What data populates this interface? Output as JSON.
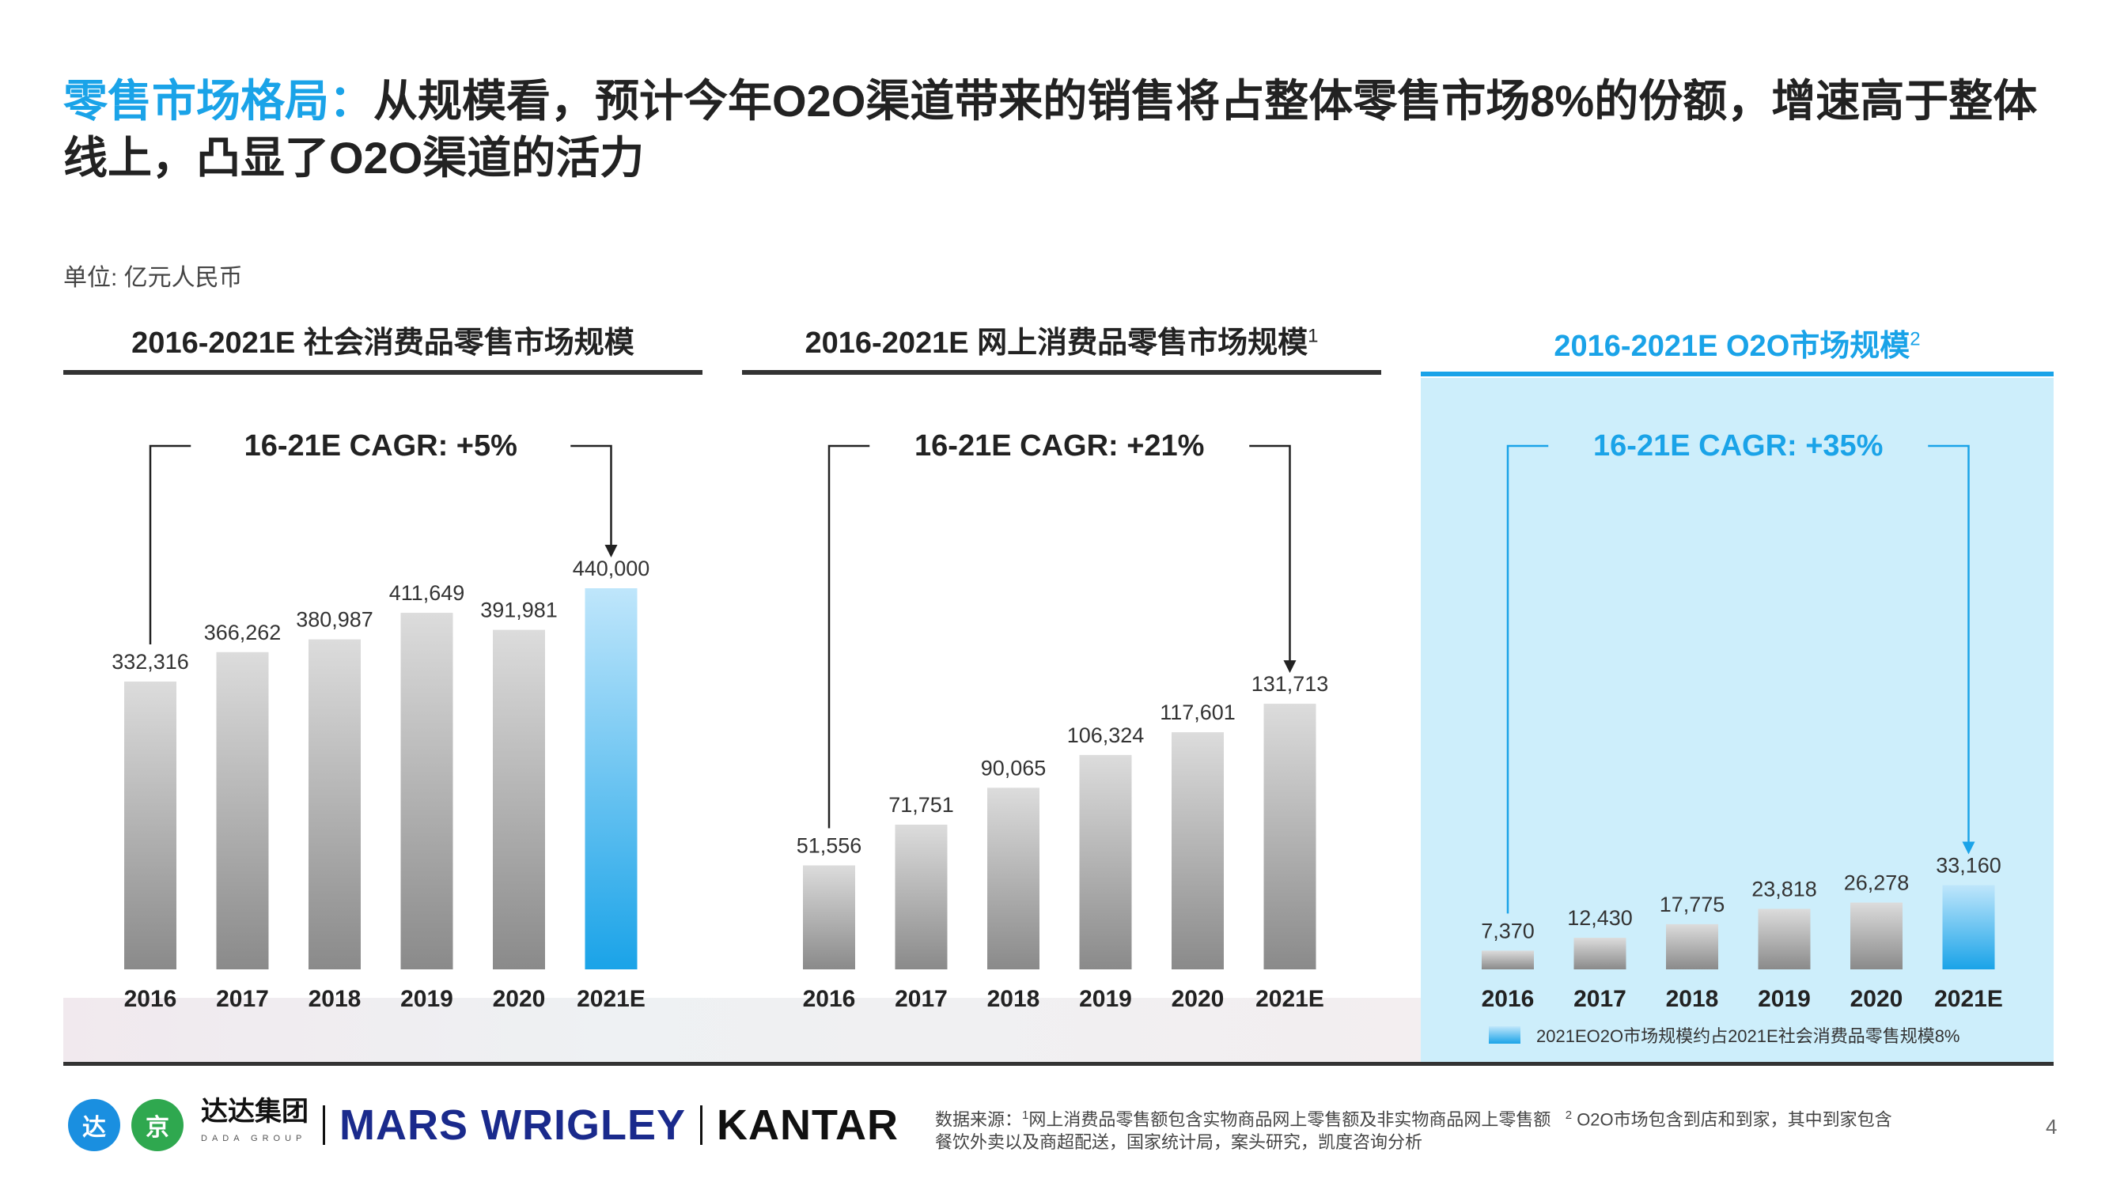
{
  "page": {
    "title_accent": "零售市场格局：",
    "title_line1": "从规模看，预计今年O2O渠道带来的销售将占整体零售市场8%的份额，增速高于整体",
    "title_line2": "线上，凸显了O2O渠道的活力",
    "unit": "单位: 亿元人民币",
    "page_number": "4"
  },
  "footer": {
    "logo_dada_icon": "达",
    "logo_jd_icon": "京",
    "logo_dada": "达达集团",
    "logo_dada_sub": "DADA GROUP",
    "logo_mars": "MARS WRIGLEY",
    "logo_kantar": "KANTAR",
    "source_prefix": "数据来源：",
    "source_sup1": "1",
    "source_note1": "网上消费品零售额包含实物商品网上零售额及非实物商品网上零售额",
    "source_sup2": "2",
    "source_note2": "O2O市场包含到店和到家，其中到家包含",
    "source_line2": "餐饮外卖以及商超配送，国家统计局，案头研究，凯度咨询分析"
  },
  "colors": {
    "accent": "#1aa3e8",
    "panel_highlight_bg": "#cdeefb",
    "bar_gray_top": "#dcdcdc",
    "bar_gray_bottom": "#8a8a8a",
    "bar_blue_top": "#bfe6fb",
    "bar_blue_bottom": "#1aa3e8"
  },
  "chart_data": [
    {
      "type": "bar",
      "title": "2016-2021E 社会消费品零售市场规模",
      "title_sup": "",
      "cagr_label": "16-21E CAGR: +5%",
      "categories": [
        "2016",
        "2017",
        "2018",
        "2019",
        "2020",
        "2021E"
      ],
      "values": [
        332316,
        366262,
        380987,
        411649,
        391981,
        440000
      ],
      "value_labels": [
        "332,316",
        "366,262",
        "380,987",
        "411,649",
        "391,981",
        "440,000"
      ],
      "highlight_last": true,
      "ylim": [
        0,
        440000
      ]
    },
    {
      "type": "bar",
      "title": "2016-2021E 网上消费品零售市场规模",
      "title_sup": "1",
      "cagr_label": "16-21E CAGR: +21%",
      "categories": [
        "2016",
        "2017",
        "2018",
        "2019",
        "2020",
        "2021E"
      ],
      "values": [
        51556,
        71751,
        90065,
        106324,
        117601,
        131713
      ],
      "value_labels": [
        "51,556",
        "71,751",
        "90,065",
        "106,324",
        "117,601",
        "131,713"
      ],
      "highlight_last": false,
      "ylim": [
        0,
        189000
      ]
    },
    {
      "type": "bar",
      "title": "2016-2021E O2O市场规模",
      "title_sup": "2",
      "cagr_label": "16-21E CAGR: +35%",
      "categories": [
        "2016",
        "2017",
        "2018",
        "2019",
        "2020",
        "2021E"
      ],
      "values": [
        7370,
        12430,
        17775,
        23818,
        26278,
        33160
      ],
      "value_labels": [
        "7,370",
        "12,430",
        "17,775",
        "23,818",
        "26,278",
        "33,160"
      ],
      "highlight_last": true,
      "legend_label": "2021EO2O市场规模约占2021E社会消费品零售规模8%",
      "ylim": [
        0,
        150000
      ]
    }
  ]
}
